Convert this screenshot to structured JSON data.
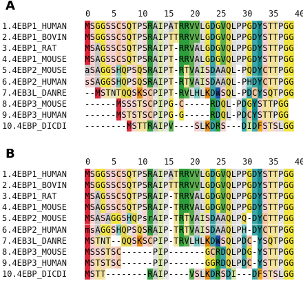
{
  "ruler": [
    "0",
    "5",
    "10",
    "15",
    "20",
    "25",
    "30",
    "35",
    "40"
  ],
  "panels": [
    {
      "label": "A",
      "rows": [
        {
          "name": "1.4EBP1_HUMAN",
          "seq": "MSGGSSCSQTPSRAIPATRRVVLGDGVQLPPGDYSTTPGG"
        },
        {
          "name": "2.4EBP1_BOVIN",
          "seq": "MSGGSSCSQTPSRAIPTTRRVVLGDGVQLPPGDYSTTPGG"
        },
        {
          "name": "3.4EBP1_RAT",
          "seq": "MSAGSSCSQTPSRAIPT-RRVALGDGVQLPPGDYSTTPGG"
        },
        {
          "name": "4.4EBP1_MOUSE",
          "seq": "MSAGSSCSQTPSRAIPT-RRVALGDGVQLPPGDYSTTPGG"
        },
        {
          "name": "5.4EBP2_MOUSE",
          "seq": "aSAGGSHQPSQSRAIPT-RTVAISDAAQL-PQDYCTTPGG"
        },
        {
          "name": "6.4EBP2_HUMAN",
          "seq": "sSAGGSHQPSQSRAIPT-RTVAISDAAQL-PHDYCTTPGG"
        },
        {
          "name": "7.4EB3L_DANRE",
          "seq": "--MSTNTQQSKSCPIPT-RVLHLKDWSQL-PDCYSQTPGG"
        },
        {
          "name": "8.4EBP3_MOUSE",
          "seq": "------MSSSTSCPIPG-C-----RDQL-PDGYSTTPGG"
        },
        {
          "name": "9.4EBP3_HUMAN",
          "seq": "------MSTSTSCPIPG-G-----RDQL-PDCYSTTPGG"
        },
        {
          "name": "10.4EBP_DICDI",
          "seq": "--------MSTTRAIPV----SLKDRS---DIDFSTSLGG"
        }
      ]
    },
    {
      "label": "B",
      "rows": [
        {
          "name": "1.4EBP1_HUMAN",
          "seq": "MSGGSSCSQTPSRAIPATRRVVLGDGVQLPPGDYSTTPGG"
        },
        {
          "name": "2.4EBP1_BOVIN",
          "seq": "MSGGSSCSQTPSRAIPTTRRVVLGDGVQLPPGDYSTTPGG"
        },
        {
          "name": "3.4EBP1_RAT",
          "seq": "MSAGSSCSQTPSRAIP-TRRVALGDGVQLPPGDYSTTPGG"
        },
        {
          "name": "4.4EBP1_MOUSE",
          "seq": "MSAGSSCSQTPSRAIP-TRRVALGDGVQLPPGDYSTTPGG"
        },
        {
          "name": "5.4EBP2_MOUSE",
          "seq": "MSASAGGSHQPsrAIP-TRTVAISDAAQLPQ-DYCTTPGG"
        },
        {
          "name": "6.4EBP2_HUMAN",
          "seq": "msAGGSHQPSQSRAIP-TRTVAISDAAQLPH-DYCTTPGG"
        },
        {
          "name": "7.4EB3L_DANRE",
          "seq": "MSTNT--QQSKSCPIP-TRVLHLKDWSQLPDC-YSQTPGG"
        },
        {
          "name": "8.4EBP3_MOUSE",
          "seq": "MSSSTSC------PIP-------GCRDQLPDG-YSTTPGG"
        },
        {
          "name": "9.4EBP3_HUMAN",
          "seq": "MSTSTSC------PIP-------GGRDQLPDC-YSTTPGG"
        },
        {
          "name": "10.4EBP_DICDI",
          "seq": "MSTT--------RAIP----VSLKDRSDI---DFSTSLGG"
        }
      ]
    }
  ],
  "colors": {
    "M": "#d9273a",
    "S": "#f5d2d2",
    "A": "#c8c8c8",
    "G": "#f0e442",
    "C": "#f2c49e",
    "Q": "#e6d84a",
    "T": "#f2e29a",
    "P": "#e5e5e5",
    "I": "#d8e8a0",
    "R": "#2c9e3c",
    "V": "#5cae4e",
    "L": "#dcdcdc",
    "D": "#3ea6a8",
    "Y": "#138a8a",
    "K": "#e68a12",
    "W": "#1d4fa5",
    "H": "#7cc9c2",
    "F": "#f1a21f",
    "N": "#e4e4c8"
  }
}
